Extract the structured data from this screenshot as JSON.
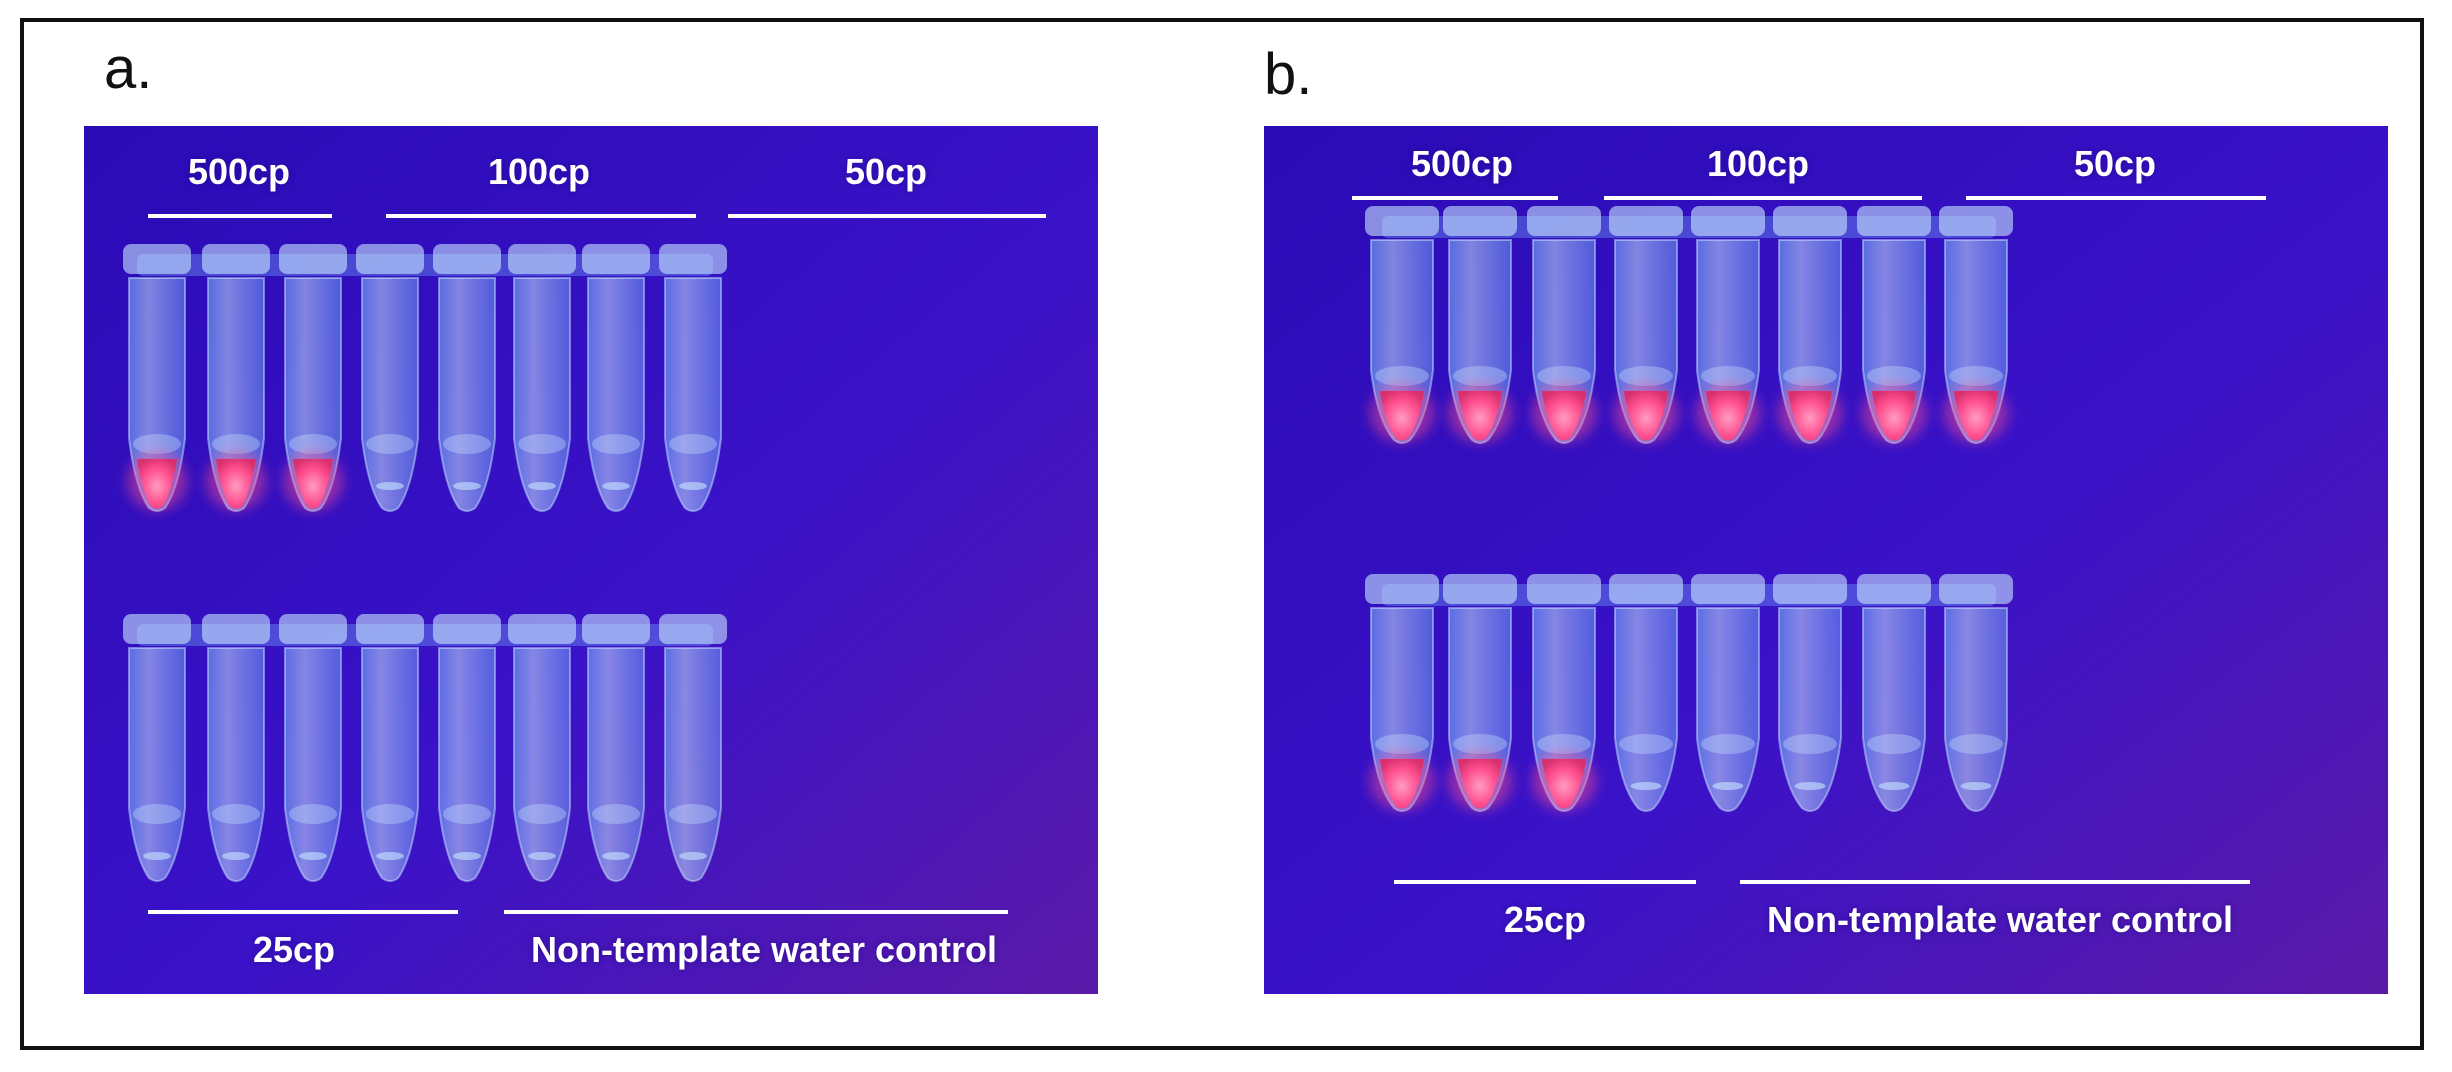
{
  "colors": {
    "background_deep": "#2a0bb5",
    "background_mid": "#3a12c8",
    "background_warm": "#5a1aa8",
    "tube": "#78b8ff",
    "tube_bright": "#c8e6ff",
    "pink_positive": "#ff4f8f",
    "label": "#ffffff"
  },
  "panels": [
    {
      "id": "a",
      "label": "a.",
      "group_labels": {
        "g500": "500cp",
        "g100": "100cp",
        "g50": "50cp",
        "g25": "25cp",
        "ntc": "Non-template water control"
      },
      "top_row": [
        "pink",
        "pink",
        "pink",
        "clear",
        "clear",
        "clear",
        "clear",
        "clear"
      ],
      "bottom_row": [
        "clear",
        "clear",
        "clear",
        "clear",
        "clear",
        "clear",
        "clear",
        "clear"
      ]
    },
    {
      "id": "b",
      "label": "b.",
      "group_labels": {
        "g500": "500cp",
        "g100": "100cp",
        "g50": "50cp",
        "g25": "25cp",
        "ntc": "Non-template water control"
      },
      "top_row": [
        "pink",
        "pink",
        "pink",
        "pink",
        "pink",
        "pink",
        "pink",
        "pink"
      ],
      "bottom_row": [
        "pink",
        "pink",
        "pink",
        "clear",
        "clear",
        "clear",
        "clear",
        "clear"
      ]
    }
  ]
}
